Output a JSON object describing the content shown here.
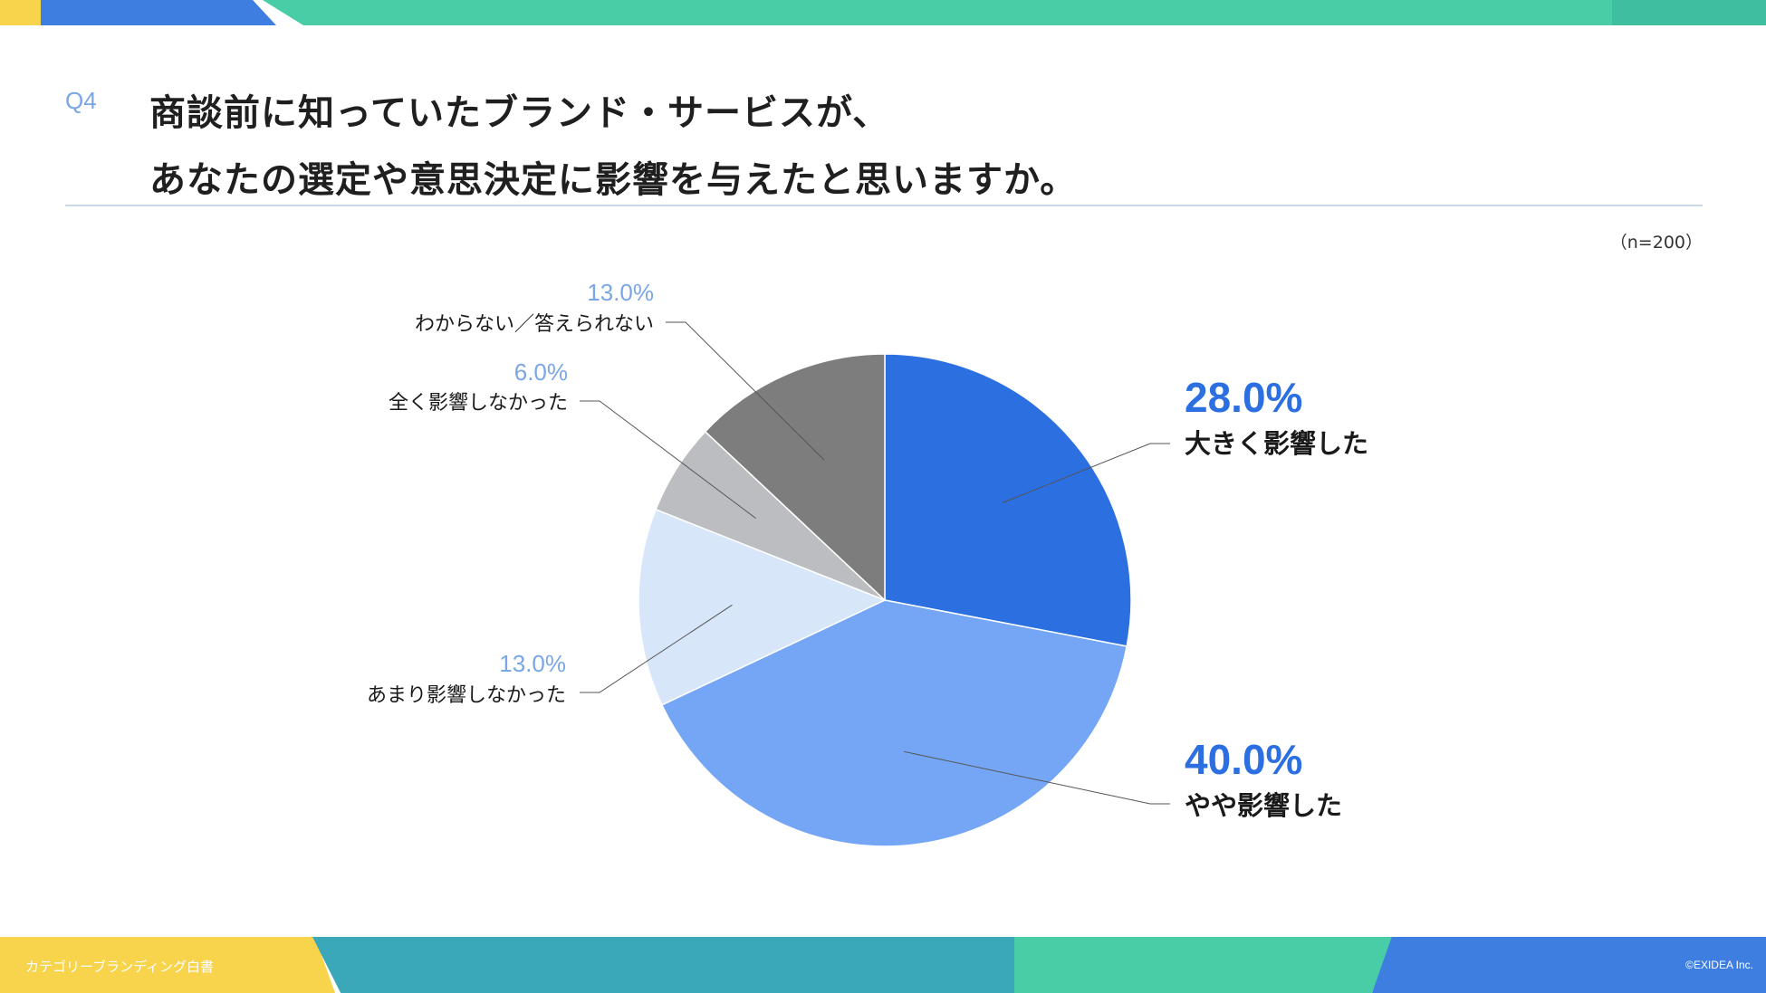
{
  "question_label": "Q4",
  "title_lines": [
    "商談前に知っていたブランド・サービスが、",
    "あなたの選定や意思決定に影響を与えたと思いますか。"
  ],
  "sample_size": "（n=200）",
  "footer": {
    "left": "カテゴリーブランディング白書",
    "right": "©EXIDEA Inc."
  },
  "colors": {
    "yellow": "#f7d44c",
    "teal": "#48cda7",
    "blue_band": "#3d7ee0",
    "teal_blue": "#3aa8b8",
    "divider": "#c9d6e6"
  },
  "chart_data": {
    "type": "pie",
    "title": "",
    "unit": "%",
    "start_angle_deg": 0,
    "direction": "clockwise",
    "slices": [
      {
        "label": "大きく影響した",
        "value": 28.0,
        "value_label": "28.0%",
        "color": "#2b6fe0",
        "label_color": "#2b6fe0"
      },
      {
        "label": "やや影響した",
        "value": 40.0,
        "value_label": "40.0%",
        "color": "#74a6f5",
        "label_color": "#2b6fe0"
      },
      {
        "label": "あまり影響しなかった",
        "value": 13.0,
        "value_label": "13.0%",
        "color": "#d8e6fa",
        "label_color": "#7aa6e6"
      },
      {
        "label": "全く影響しなかった",
        "value": 6.0,
        "value_label": "6.0%",
        "color": "#bcbdc0",
        "label_color": "#7aa6e6"
      },
      {
        "label": "わからない／答えられない",
        "value": 13.0,
        "value_label": "13.0%",
        "color": "#7d7d7d",
        "label_color": "#7aa6e6"
      }
    ]
  }
}
